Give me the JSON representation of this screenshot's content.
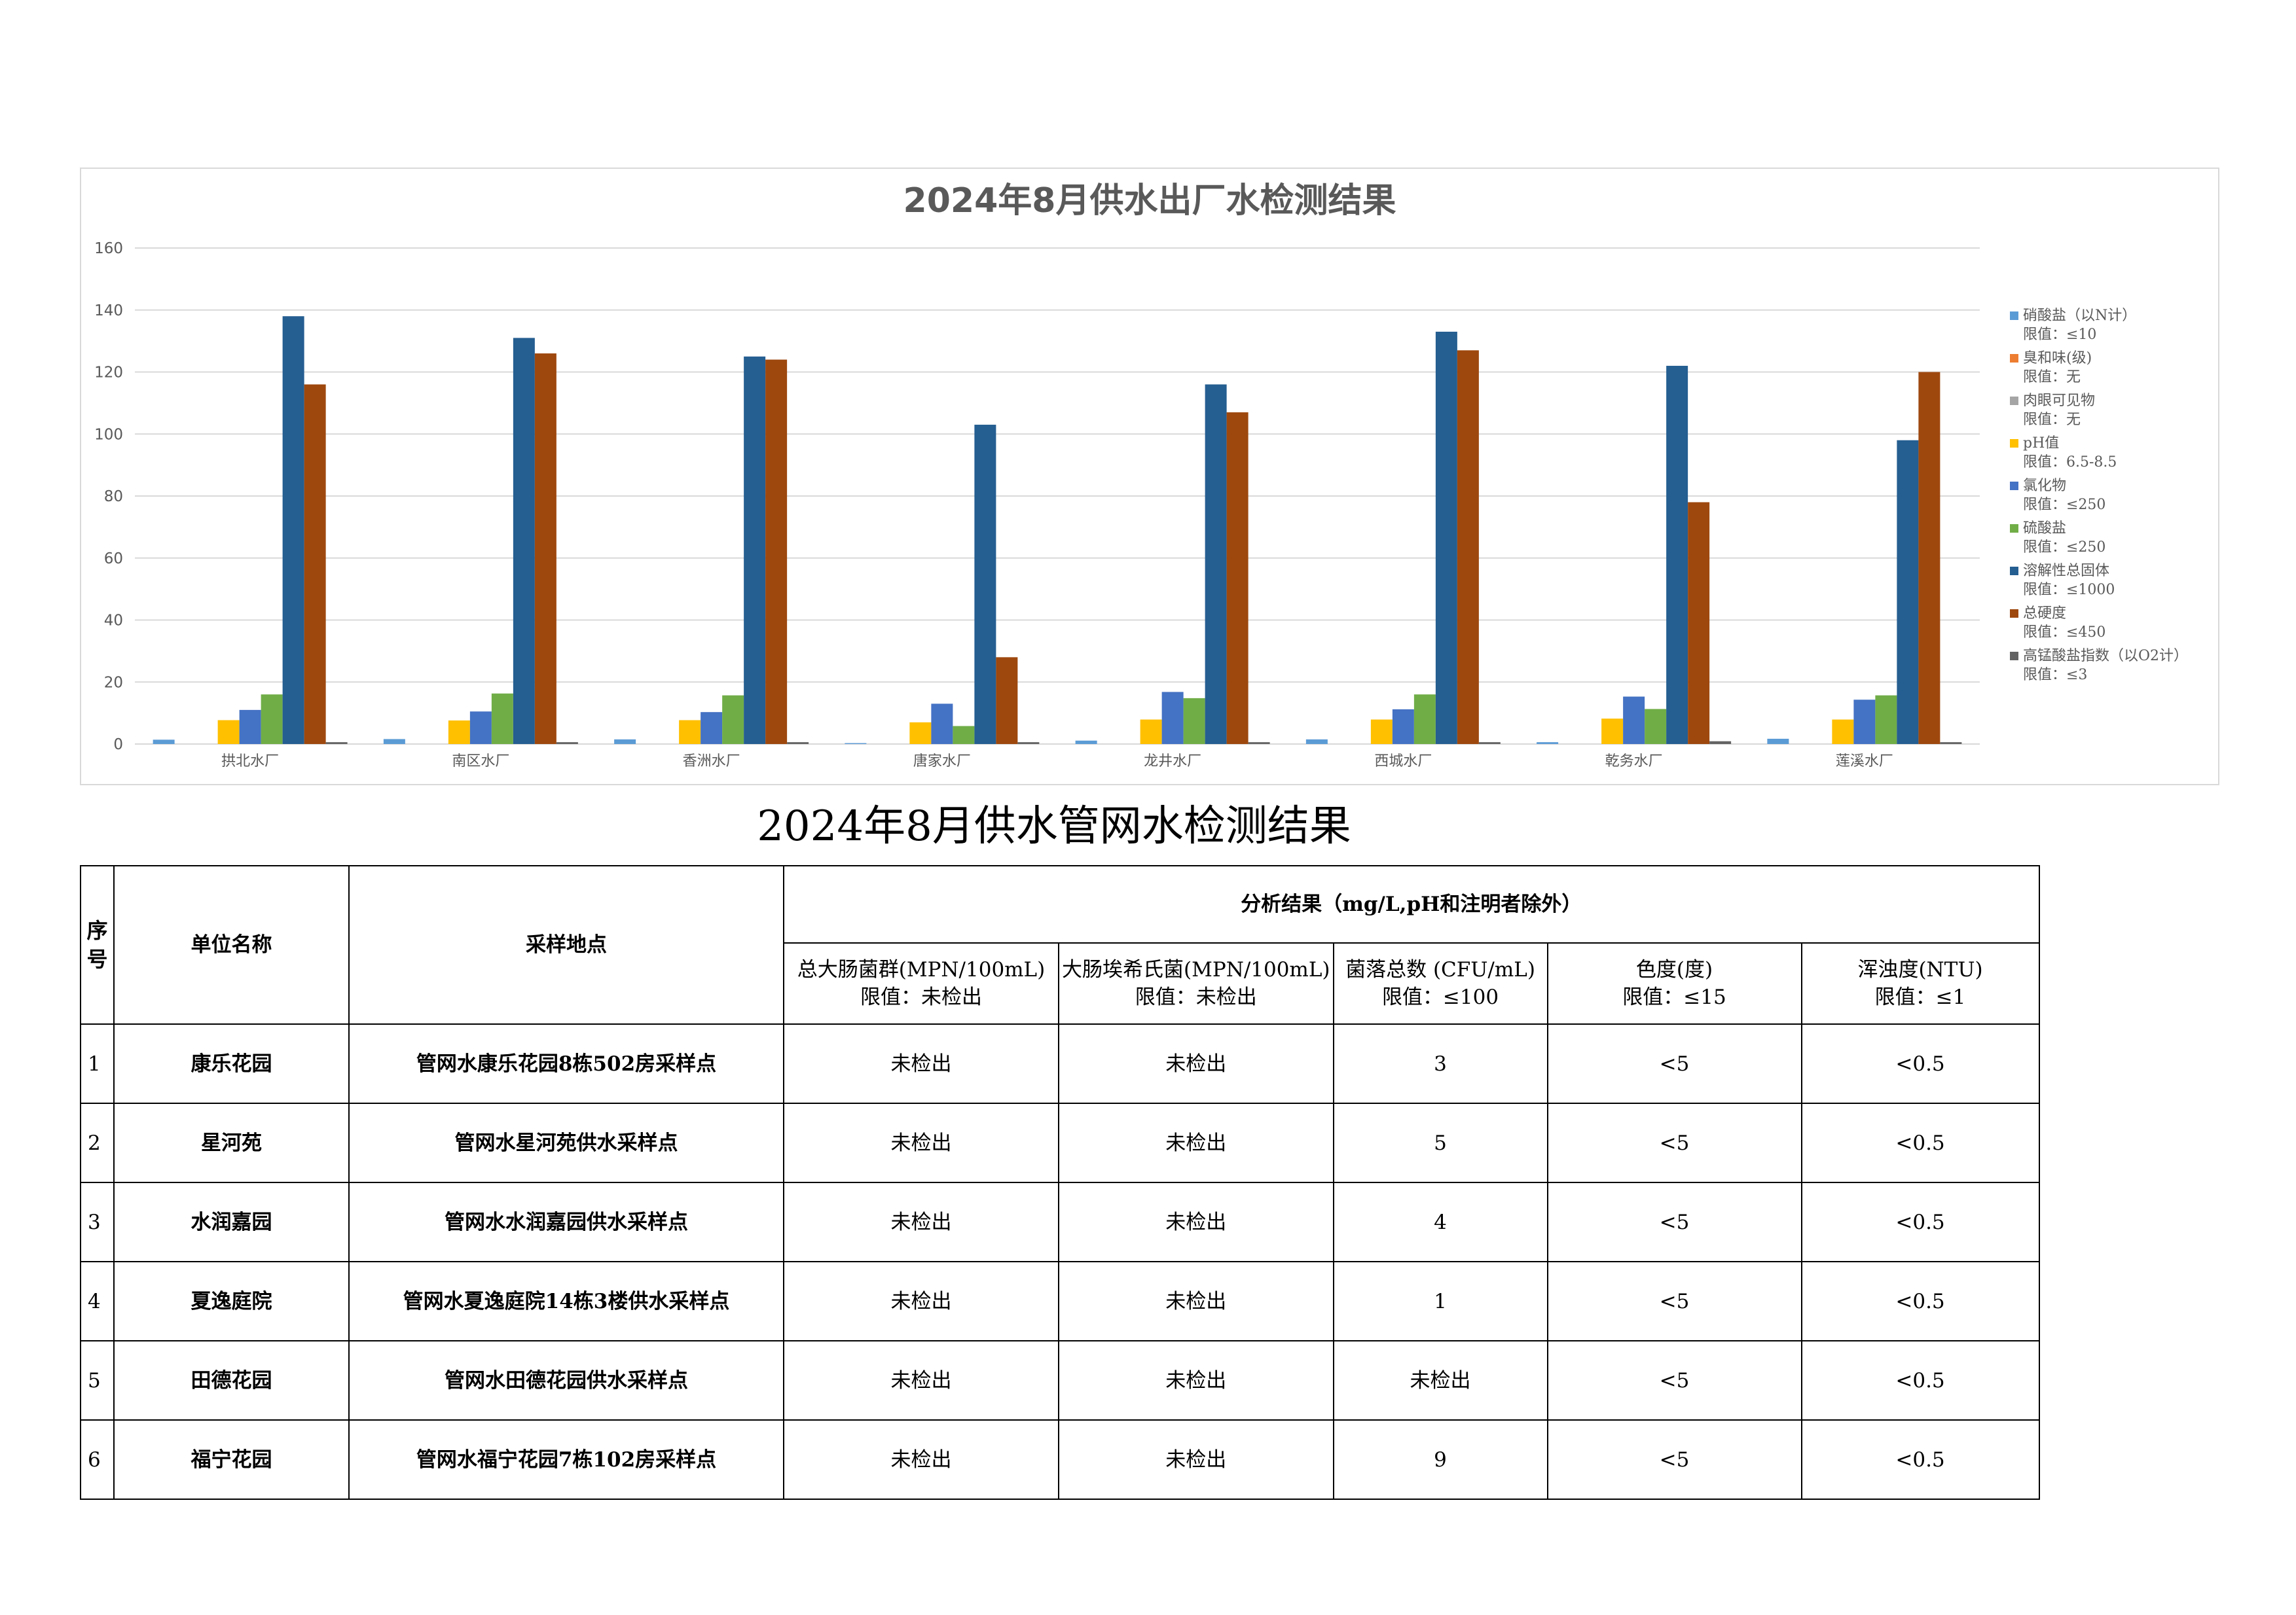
{
  "chart_data": {
    "type": "bar",
    "title": "2024年8月供水出厂水检测结果",
    "categories": [
      "拱北水厂",
      "南区水厂",
      "香洲水厂",
      "唐家水厂",
      "龙井水厂",
      "西城水厂",
      "乾务水厂",
      "莲溪水厂"
    ],
    "ylim": [
      0,
      160
    ],
    "yticks": [
      0,
      20,
      40,
      60,
      80,
      100,
      120,
      140,
      160
    ],
    "grid": true,
    "legend_position": "right",
    "series": [
      {
        "name": "硝酸盐（以N计）",
        "limit": "限值：≤10",
        "color": "#5b9bd5",
        "values": [
          1.4,
          1.6,
          1.5,
          0.3,
          1.1,
          1.5,
          0.6,
          1.7
        ]
      },
      {
        "name": "臭和味(级)",
        "limit": "限值：无",
        "color": "#ed7d31",
        "values": [
          0,
          0,
          0,
          0,
          0,
          0,
          0,
          0
        ]
      },
      {
        "name": "肉眼可见物",
        "limit": "限值：无",
        "color": "#a5a5a5",
        "values": [
          0,
          0,
          0,
          0,
          0,
          0,
          0,
          0
        ]
      },
      {
        "name": "pH值",
        "limit": "限值：6.5-8.5",
        "color": "#ffc000",
        "values": [
          7.7,
          7.6,
          7.7,
          7.0,
          7.9,
          7.9,
          8.2,
          7.9
        ]
      },
      {
        "name": "氯化物",
        "limit": "限值：≤250",
        "color": "#4472c4",
        "values": [
          11,
          10.5,
          10.3,
          13,
          16.8,
          11.2,
          15.3,
          14.3
        ]
      },
      {
        "name": "硫酸盐",
        "limit": "限值：≤250",
        "color": "#70ad47",
        "values": [
          16,
          16.3,
          15.7,
          5.8,
          14.8,
          16,
          11.3,
          15.7
        ]
      },
      {
        "name": "溶解性总固体",
        "limit": "限值：≤1000",
        "color": "#255e91",
        "values": [
          138,
          131,
          125,
          103,
          116,
          133,
          122,
          98
        ]
      },
      {
        "name": "总硬度",
        "limit": "限值：≤450",
        "color": "#9e480e",
        "values": [
          116,
          126,
          124,
          28,
          107,
          127,
          78,
          120
        ]
      },
      {
        "name": "高锰酸盐指数（以O2计）",
        "limit": "限值：≤3",
        "color": "#636363",
        "values": [
          0.6,
          0.6,
          0.6,
          0.6,
          0.6,
          0.6,
          0.9,
          0.6
        ]
      }
    ]
  },
  "table": {
    "title": "2024年8月供水管网水检测结果",
    "headers": {
      "seq": "序号",
      "unit": "单位名称",
      "site": "采样地点",
      "analysis": "分析结果（mg/L,pH和注明者除外）",
      "cols": [
        {
          "name": "总大肠菌群(MPN/100mL)",
          "limit": "限值：未检出"
        },
        {
          "name": "大肠埃希氏菌(MPN/100mL)",
          "limit": "限值：未检出"
        },
        {
          "name": "菌落总数 (CFU/mL)",
          "limit": "限值：≤100"
        },
        {
          "name": "色度(度)",
          "limit": "限值：≤15"
        },
        {
          "name": "浑浊度(NTU)",
          "limit": "限值：≤1"
        }
      ]
    },
    "rows": [
      {
        "seq": "1",
        "unit": "康乐花园",
        "site": "管网水康乐花园8栋502房采样点",
        "v1": "未检出",
        "v2": "未检出",
        "v3": "3",
        "v4": "<5",
        "v5": "<0.5"
      },
      {
        "seq": "2",
        "unit": "星河苑",
        "site": "管网水星河苑供水采样点",
        "v1": "未检出",
        "v2": "未检出",
        "v3": "5",
        "v4": "<5",
        "v5": "<0.5"
      },
      {
        "seq": "3",
        "unit": "水润嘉园",
        "site": "管网水水润嘉园供水采样点",
        "v1": "未检出",
        "v2": "未检出",
        "v3": "4",
        "v4": "<5",
        "v5": "<0.5"
      },
      {
        "seq": "4",
        "unit": "夏逸庭院",
        "site": "管网水夏逸庭院14栋3楼供水采样点",
        "v1": "未检出",
        "v2": "未检出",
        "v3": "1",
        "v4": "<5",
        "v5": "<0.5"
      },
      {
        "seq": "5",
        "unit": "田德花园",
        "site": "管网水田德花园供水采样点",
        "v1": "未检出",
        "v2": "未检出",
        "v3": "未检出",
        "v4": "<5",
        "v5": "<0.5"
      },
      {
        "seq": "6",
        "unit": "福宁花园",
        "site": "管网水福宁花园7栋102房采样点",
        "v1": "未检出",
        "v2": "未检出",
        "v3": "9",
        "v4": "<5",
        "v5": "<0.5"
      }
    ]
  }
}
